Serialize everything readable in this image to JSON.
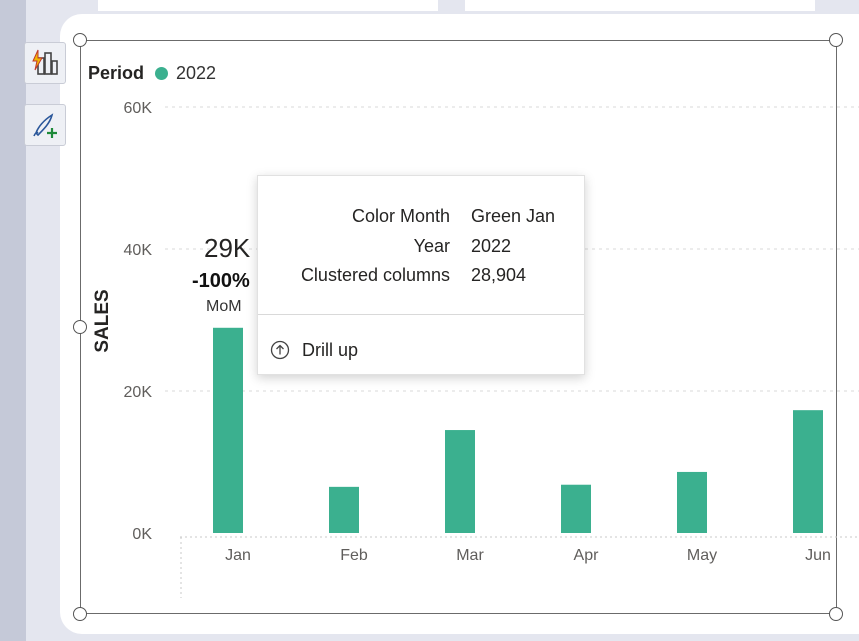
{
  "legend": {
    "title": "Period",
    "label": "2022",
    "color": "#3bb08f"
  },
  "toolbar": {
    "quick_insights_icon": "bar-chart-lightning-icon",
    "format_icon": "paintbrush-plus-icon"
  },
  "annotation": {
    "value": "29K",
    "change": "-100%",
    "period": "MoM"
  },
  "tooltip": {
    "rows": [
      {
        "key": "Color Month",
        "value": "Green Jan"
      },
      {
        "key": "Year",
        "value": "2022"
      },
      {
        "key": "Clustered columns",
        "value": "28,904"
      }
    ],
    "drill_label": "Drill up"
  },
  "colors": {
    "bar": "#3bb08f",
    "axis_text": "#605e5c",
    "grid": "#d9d9d9"
  },
  "chart_data": {
    "type": "bar",
    "categories": [
      "Jan",
      "Feb",
      "Mar",
      "Apr",
      "May",
      "Jun"
    ],
    "series": [
      {
        "name": "2022",
        "values": [
          28904,
          6500,
          14500,
          6800,
          8600,
          17300
        ]
      }
    ],
    "yticks": [
      "60K",
      "40K",
      "20K",
      "0K"
    ],
    "ylabel": "SALES",
    "xlabel": "",
    "ylim": [
      0,
      60000
    ],
    "grid": true,
    "legend_position": "top-left"
  }
}
